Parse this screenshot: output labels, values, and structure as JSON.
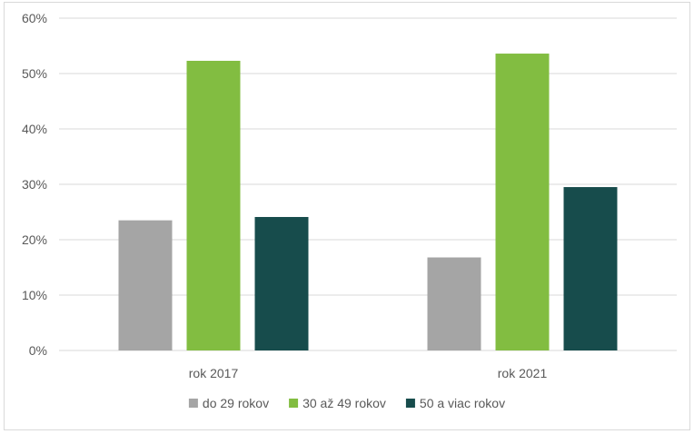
{
  "chart_data": {
    "type": "bar",
    "categories": [
      "rok 2017",
      "rok 2021"
    ],
    "series": [
      {
        "name": "do 29 rokov",
        "values": [
          23.5,
          16.8
        ],
        "color": "#a5a5a5"
      },
      {
        "name": "30 až 49 rokov",
        "values": [
          52.3,
          53.6
        ],
        "color": "#82bd41"
      },
      {
        "name": "50 a viac rokov",
        "values": [
          24.1,
          29.5
        ],
        "color": "#174c4c"
      }
    ],
    "y_ticks": [
      "0%",
      "10%",
      "20%",
      "30%",
      "40%",
      "50%",
      "60%"
    ],
    "ylim": [
      0,
      60
    ],
    "grid": true,
    "legend": "bottom",
    "gridline_color": "#d9d9d9"
  }
}
